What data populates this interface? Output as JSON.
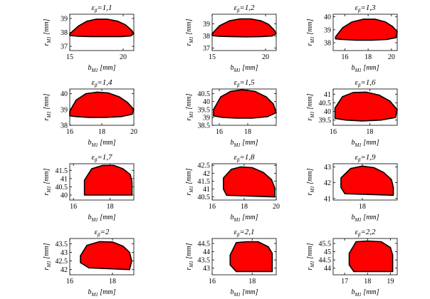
{
  "chart_data": [
    {
      "type": "area",
      "title": "εβ=1,1",
      "xlabel": "bM1 [mm]",
      "ylabel": "rM1 [mm]",
      "xlim": [
        15,
        21
      ],
      "ylim": [
        36.7,
        39.3
      ],
      "xticks": [
        15,
        20
      ],
      "yticks": [
        37,
        38,
        39
      ],
      "boundary_x": [
        15.0,
        15.8,
        16.6,
        17.5,
        18.5,
        19.5,
        20.2,
        20.8,
        21.0,
        20.7,
        19.8,
        18.5,
        17.0,
        15.8,
        15.0
      ],
      "boundary_y": [
        37.9,
        38.45,
        38.8,
        38.95,
        38.95,
        38.8,
        38.55,
        38.15,
        37.9,
        37.75,
        37.7,
        37.7,
        37.7,
        37.72,
        37.78
      ]
    },
    {
      "type": "area",
      "title": "εβ=1,2",
      "xlabel": "bM1 [mm]",
      "ylabel": "rM1 [mm]",
      "xlim": [
        15,
        21
      ],
      "ylim": [
        36.8,
        39.8
      ],
      "xticks": [
        15,
        20
      ],
      "yticks": [
        37,
        38,
        39
      ],
      "boundary_x": [
        15.0,
        15.7,
        16.6,
        17.6,
        18.6,
        19.6,
        20.3,
        20.8,
        21.0,
        20.6,
        19.6,
        18.2,
        16.8,
        15.6,
        15.0
      ],
      "boundary_y": [
        38.2,
        38.85,
        39.25,
        39.42,
        39.42,
        39.25,
        38.95,
        38.5,
        38.2,
        38.0,
        37.95,
        37.93,
        37.95,
        37.98,
        38.05
      ]
    },
    {
      "type": "area",
      "title": "εβ=1,3",
      "xlabel": "bM1 [mm]",
      "ylabel": "rM1 [mm]",
      "xlim": [
        15,
        20.5
      ],
      "ylim": [
        37.4,
        40.2
      ],
      "xticks": [
        16,
        18,
        20
      ],
      "yticks": [
        38,
        39,
        40
      ],
      "boundary_x": [
        15.2,
        15.8,
        16.6,
        17.6,
        18.6,
        19.5,
        20.1,
        20.5,
        20.4,
        19.6,
        18.3,
        17.0,
        15.8,
        15.2
      ],
      "boundary_y": [
        38.45,
        39.15,
        39.6,
        39.82,
        39.82,
        39.6,
        39.25,
        38.85,
        38.4,
        38.25,
        38.2,
        38.2,
        38.25,
        38.3
      ]
    },
    {
      "type": "area",
      "title": "εβ=1,4",
      "xlabel": "bM1 [mm]",
      "ylabel": "rM1 [mm]",
      "xlim": [
        16,
        20
      ],
      "ylim": [
        38,
        40.3
      ],
      "xticks": [
        16,
        18,
        20
      ],
      "yticks": [
        38,
        39,
        40
      ],
      "boundary_x": [
        16.0,
        16.4,
        17.0,
        17.7,
        18.4,
        19.1,
        19.6,
        20.0,
        19.9,
        19.2,
        18.2,
        17.2,
        16.4,
        16.0
      ],
      "boundary_y": [
        38.9,
        39.6,
        40.0,
        40.1,
        40.05,
        39.8,
        39.45,
        39.0,
        38.7,
        38.55,
        38.5,
        38.5,
        38.55,
        38.6
      ]
    },
    {
      "type": "area",
      "title": "εβ=1,5",
      "xlabel": "bM1 [mm]",
      "ylabel": "rM1 [mm]",
      "xlim": [
        15.5,
        20
      ],
      "ylim": [
        38.5,
        40.8
      ],
      "xticks": [
        16,
        18
      ],
      "yticks": [
        38.5,
        39,
        39.5,
        40,
        40.5
      ],
      "boundary_x": [
        15.6,
        16.1,
        16.8,
        17.6,
        18.5,
        19.3,
        19.8,
        20.0,
        19.4,
        18.3,
        17.2,
        16.2,
        15.6
      ],
      "boundary_y": [
        39.5,
        40.3,
        40.65,
        40.75,
        40.65,
        40.3,
        39.85,
        39.3,
        39.05,
        38.95,
        38.95,
        39.0,
        39.1
      ]
    },
    {
      "type": "area",
      "title": "εβ=1,6",
      "xlabel": "bM1 [mm]",
      "ylabel": "rM1 [mm]",
      "xlim": [
        16,
        19.5
      ],
      "ylim": [
        39.2,
        41.3
      ],
      "xticks": [
        16,
        18
      ],
      "yticks": [
        39.5,
        40,
        40.5,
        41
      ],
      "boundary_x": [
        16.1,
        16.5,
        17.1,
        17.8,
        18.5,
        19.1,
        19.5,
        19.4,
        18.6,
        17.6,
        16.7,
        16.1
      ],
      "boundary_y": [
        40.2,
        40.85,
        41.1,
        41.12,
        40.95,
        40.6,
        40.1,
        39.65,
        39.5,
        39.45,
        39.5,
        39.6
      ]
    },
    {
      "type": "area",
      "title": "εβ=1,7",
      "xlabel": "bM1 [mm]",
      "ylabel": "rM1 [mm]",
      "xlim": [
        15.8,
        19.3
      ],
      "ylim": [
        39.7,
        41.9
      ],
      "xticks": [
        16,
        18
      ],
      "yticks": [
        40,
        40.5,
        41,
        41.5
      ],
      "boundary_x": [
        16.6,
        17.0,
        17.6,
        18.2,
        18.7,
        19.1,
        19.2,
        19.2,
        16.6
      ],
      "boundary_y": [
        40.9,
        41.6,
        41.8,
        41.8,
        41.6,
        41.25,
        40.8,
        40.0,
        40.0
      ]
    },
    {
      "type": "area",
      "title": "εβ=1,8",
      "xlabel": "bM1 [mm]",
      "ylabel": "rM1 [mm]",
      "xlim": [
        16,
        20
      ],
      "ylim": [
        40.3,
        42.6
      ],
      "xticks": [
        16,
        18,
        20
      ],
      "yticks": [
        40.5,
        41,
        41.5,
        42,
        42.5
      ],
      "boundary_x": [
        16.7,
        17.2,
        17.8,
        18.5,
        19.2,
        19.7,
        19.9,
        19.9,
        16.9,
        16.7
      ],
      "boundary_y": [
        41.7,
        42.25,
        42.4,
        42.35,
        42.05,
        41.6,
        41.1,
        40.5,
        40.6,
        41.0
      ]
    },
    {
      "type": "area",
      "title": "εβ=1,9",
      "xlabel": "bM1 [mm]",
      "ylabel": "rM1 [mm]",
      "xlim": [
        16.5,
        19.8
      ],
      "ylim": [
        40.9,
        43.2
      ],
      "xticks": [
        18
      ],
      "yticks": [
        41,
        42,
        43
      ],
      "boundary_x": [
        16.9,
        17.4,
        18.0,
        18.6,
        19.1,
        19.5,
        19.6,
        19.6,
        17.1,
        16.9
      ],
      "boundary_y": [
        42.3,
        42.9,
        43.05,
        42.95,
        42.65,
        42.2,
        41.7,
        41.2,
        41.3,
        41.7
      ]
    },
    {
      "type": "area",
      "title": "εβ=2",
      "xlabel": "bM1 [mm]",
      "ylabel": "rM1 [mm]",
      "xlim": [
        16,
        19
      ],
      "ylim": [
        41.7,
        43.8
      ],
      "xticks": [
        16,
        18
      ],
      "yticks": [
        42,
        42.5,
        43,
        43.5
      ],
      "boundary_x": [
        16.5,
        16.8,
        17.4,
        18.0,
        18.5,
        18.8,
        18.9,
        18.8,
        16.9,
        16.5
      ],
      "boundary_y": [
        42.8,
        43.4,
        43.62,
        43.6,
        43.35,
        43.0,
        42.5,
        42.0,
        42.1,
        42.4
      ]
    },
    {
      "type": "area",
      "title": "εβ=2,1",
      "xlabel": "bM1 [mm]",
      "ylabel": "rM1 [mm]",
      "xlim": [
        16,
        19.2
      ],
      "ylim": [
        42.6,
        44.8
      ],
      "xticks": [
        16,
        18
      ],
      "yticks": [
        43,
        43.5,
        44,
        44.5
      ],
      "boundary_x": [
        16.9,
        17.2,
        17.7,
        18.3,
        18.8,
        19.0,
        19.0,
        17.2,
        16.9
      ],
      "boundary_y": [
        43.8,
        44.55,
        44.6,
        44.6,
        44.3,
        43.9,
        42.8,
        42.8,
        43.2
      ]
    },
    {
      "type": "area",
      "title": "εβ=2,2",
      "xlabel": "bM1 [mm]",
      "ylabel": "rM1 [mm]",
      "xlim": [
        16.5,
        19.3
      ],
      "ylim": [
        43.6,
        45.8
      ],
      "xticks": [
        17,
        18,
        19
      ],
      "yticks": [
        44,
        44.5,
        45,
        45.5
      ],
      "boundary_x": [
        17.2,
        17.5,
        18.0,
        18.6,
        19.0,
        19.1,
        19.1,
        17.4,
        17.2
      ],
      "boundary_y": [
        44.9,
        45.6,
        45.65,
        45.6,
        45.25,
        44.8,
        43.8,
        43.8,
        44.2
      ]
    }
  ],
  "colors": {
    "fill": "#ff0000",
    "edge": "#000000"
  }
}
